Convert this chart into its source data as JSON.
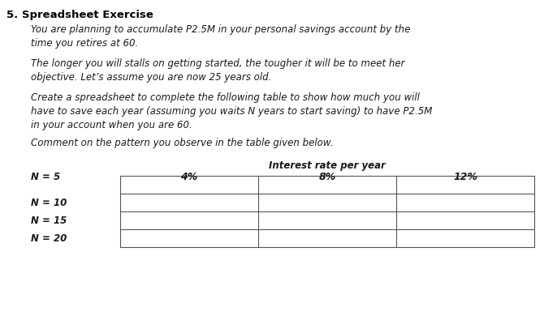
{
  "title": "5. Spreadsheet Exercise",
  "para1": "You are planning to accumulate P2.5M in your personal savings account by the\ntime you retires at 60.",
  "para2": "The longer you will stalls on getting started, the tougher it will be to meet her\nobjective. Let’s assume you are now 25 years old.",
  "para3": "Create a spreadsheet to complete the following table to show how much you will\nhave to save each year (assuming you waits N years to start saving) to have P2.5M\nin your account when you are 60.",
  "para4": "Comment on the pattern you observe in the table given below.",
  "table_header": "Interest rate per year",
  "col_labels": [
    "4%",
    "8%",
    "12%"
  ],
  "row_labels": [
    "N = 5",
    "N = 10",
    "N = 15",
    "N = 20"
  ],
  "bg_color": "#ffffff",
  "text_color": "#1a1a1a",
  "title_color": "#000000",
  "body_font_size": 8.5,
  "title_font_size": 9.5,
  "table_header_font_size": 8.0,
  "n_rows": 4,
  "n_cols": 3
}
